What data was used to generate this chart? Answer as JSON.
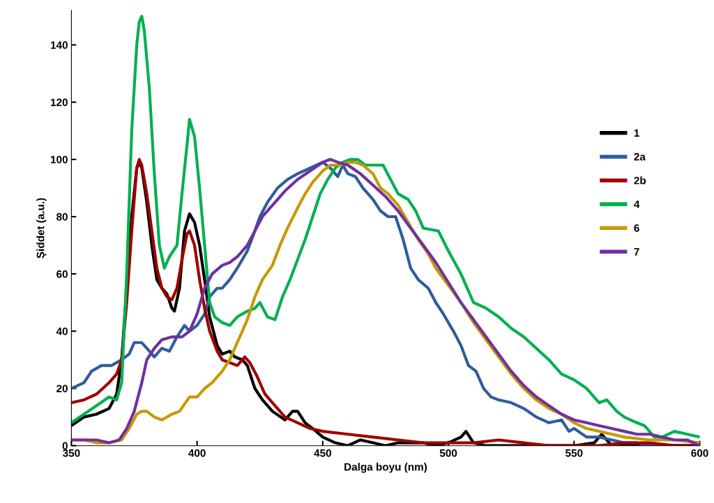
{
  "chart_data": {
    "type": "line",
    "xlabel": "Dalga boyu (nm)",
    "ylabel": "Şiddet (a.u.)",
    "xlim": [
      350,
      600
    ],
    "xticks": [
      350,
      400,
      450,
      500,
      550,
      600
    ],
    "ylim": [
      0,
      152
    ],
    "yticks": [
      0,
      20,
      40,
      60,
      80,
      100,
      120,
      140
    ],
    "grid": false,
    "legend": "right",
    "marker": "none",
    "line_style": "solid",
    "series": [
      {
        "name": "1",
        "color": "#000000",
        "x": [
          350,
          355,
          360,
          365,
          368,
          370,
          372,
          374,
          376,
          377,
          378,
          380,
          382,
          384,
          386,
          388,
          390,
          391,
          393,
          395,
          397,
          399,
          401,
          403,
          405,
          408,
          410,
          413,
          415,
          418,
          420,
          423,
          426,
          430,
          435,
          438,
          440,
          443,
          446,
          450,
          455,
          460,
          465,
          470,
          475,
          480,
          485,
          490,
          495,
          500,
          505,
          507,
          510,
          515,
          520,
          530,
          540,
          550,
          558,
          561,
          563,
          565,
          580,
          600
        ],
        "values": [
          7,
          10,
          11,
          13,
          18,
          30,
          55,
          80,
          97,
          99,
          97,
          85,
          70,
          58,
          55,
          53,
          48,
          47,
          55,
          75,
          81,
          78,
          70,
          58,
          45,
          35,
          32,
          33,
          31,
          30,
          28,
          20,
          16,
          12,
          9,
          12,
          12,
          8,
          6,
          3,
          1,
          0,
          2,
          1,
          0,
          1,
          1,
          1,
          0,
          1,
          3,
          5,
          1,
          0,
          0,
          0,
          0,
          0,
          1,
          4,
          2,
          0,
          0,
          0
        ]
      },
      {
        "name": "2a",
        "color": "#2e5c9e",
        "x": [
          350,
          355,
          358,
          362,
          366,
          370,
          373,
          375,
          378,
          380,
          383,
          386,
          389,
          392,
          395,
          397,
          400,
          403,
          405,
          408,
          410,
          413,
          416,
          420,
          423,
          425,
          428,
          432,
          436,
          440,
          445,
          450,
          453,
          456,
          458,
          460,
          463,
          466,
          470,
          473,
          476,
          479,
          482,
          485,
          488,
          492,
          495,
          498,
          502,
          505,
          508,
          511,
          514,
          517,
          520,
          525,
          530,
          535,
          540,
          545,
          548,
          550,
          555,
          560,
          565,
          570,
          575,
          580,
          590,
          600
        ],
        "values": [
          20,
          22,
          26,
          28,
          28,
          30,
          32,
          36,
          36,
          34,
          31,
          34,
          33,
          38,
          42,
          40,
          42,
          46,
          52,
          55,
          55,
          58,
          62,
          68,
          75,
          80,
          85,
          90,
          93,
          95,
          97,
          99,
          97,
          94,
          98,
          95,
          94,
          90,
          86,
          82,
          80,
          80,
          72,
          62,
          58,
          55,
          50,
          46,
          40,
          35,
          28,
          26,
          20,
          17,
          16,
          15,
          13,
          10,
          8,
          9,
          5,
          6,
          3,
          3,
          2,
          1,
          1,
          0,
          0,
          0
        ]
      },
      {
        "name": "2b",
        "color": "#a00000",
        "x": [
          350,
          355,
          360,
          365,
          368,
          370,
          372,
          374,
          376,
          377,
          378,
          380,
          382,
          384,
          386,
          388,
          390,
          392,
          394,
          396,
          397,
          399,
          401,
          403,
          405,
          408,
          410,
          413,
          416,
          419,
          421,
          424,
          427,
          430,
          435,
          440,
          445,
          450,
          460,
          470,
          480,
          490,
          500,
          510,
          520,
          530,
          540,
          550,
          560,
          570,
          580,
          590,
          600
        ],
        "values": [
          15,
          16,
          18,
          22,
          25,
          30,
          50,
          75,
          97,
          100,
          98,
          88,
          75,
          62,
          55,
          52,
          51,
          55,
          65,
          74,
          75,
          70,
          58,
          48,
          40,
          33,
          30,
          29,
          28,
          31,
          29,
          24,
          18,
          15,
          10,
          8,
          6,
          5,
          4,
          3,
          2,
          1,
          1,
          1,
          2,
          1,
          0,
          0,
          0,
          1,
          1,
          0,
          0
        ]
      },
      {
        "name": "4",
        "color": "#00b050",
        "x": [
          350,
          355,
          360,
          365,
          368,
          370,
          372,
          374,
          376,
          377,
          378,
          379,
          381,
          383,
          385,
          387,
          389,
          392,
          394,
          396,
          397,
          399,
          401,
          403,
          405,
          407,
          410,
          413,
          416,
          420,
          423,
          425,
          428,
          431,
          434,
          437,
          440,
          443,
          446,
          449,
          452,
          455,
          458,
          461,
          464,
          467,
          470,
          474,
          477,
          480,
          484,
          487,
          490,
          496,
          500,
          505,
          510,
          515,
          520,
          525,
          530,
          535,
          540,
          545,
          550,
          555,
          560,
          563,
          567,
          570,
          575,
          578,
          582,
          585,
          590,
          595,
          600
        ],
        "values": [
          8,
          11,
          14,
          17,
          16,
          22,
          60,
          110,
          140,
          148,
          150,
          145,
          125,
          95,
          70,
          62,
          66,
          70,
          88,
          105,
          114,
          108,
          90,
          70,
          50,
          45,
          43,
          42,
          45,
          47,
          48,
          50,
          45,
          44,
          52,
          58,
          65,
          72,
          80,
          88,
          93,
          97,
          99,
          100,
          100,
          98,
          98,
          98,
          93,
          88,
          86,
          82,
          76,
          75,
          68,
          60,
          50,
          48,
          45,
          41,
          38,
          34,
          30,
          25,
          23,
          20,
          15,
          16,
          12,
          10,
          8,
          7,
          3,
          3,
          5,
          4,
          3
        ]
      },
      {
        "name": "6",
        "color": "#c89800",
        "x": [
          350,
          355,
          360,
          365,
          370,
          373,
          376,
          378,
          380,
          383,
          386,
          390,
          393,
          397,
          400,
          403,
          406,
          410,
          413,
          416,
          420,
          423,
          426,
          430,
          433,
          436,
          440,
          443,
          446,
          450,
          453,
          457,
          460,
          463,
          466,
          470,
          473,
          476,
          480,
          484,
          488,
          492,
          495,
          500,
          505,
          510,
          515,
          520,
          525,
          530,
          535,
          540,
          545,
          550,
          555,
          560,
          565,
          570,
          580,
          590,
          600
        ],
        "values": [
          2,
          2,
          1,
          1,
          2,
          6,
          11,
          12,
          12,
          10,
          9,
          11,
          12,
          17,
          17,
          20,
          22,
          26,
          30,
          36,
          44,
          52,
          58,
          63,
          70,
          76,
          83,
          88,
          92,
          96,
          98,
          98,
          99,
          99,
          98,
          95,
          90,
          88,
          84,
          78,
          72,
          67,
          62,
          56,
          50,
          43,
          37,
          31,
          25,
          20,
          16,
          13,
          11,
          8,
          6,
          5,
          4,
          3,
          2,
          2,
          1
        ]
      },
      {
        "name": "7",
        "color": "#7030a0",
        "x": [
          350,
          355,
          360,
          365,
          369,
          372,
          375,
          378,
          380,
          383,
          386,
          390,
          394,
          397,
          400,
          403,
          406,
          410,
          413,
          416,
          420,
          423,
          426,
          430,
          435,
          440,
          445,
          450,
          453,
          456,
          460,
          465,
          470,
          475,
          480,
          485,
          490,
          495,
          500,
          505,
          510,
          515,
          520,
          525,
          530,
          535,
          540,
          545,
          550,
          555,
          560,
          565,
          570,
          575,
          580,
          585,
          590,
          595,
          600
        ],
        "values": [
          2,
          2,
          2,
          1,
          2,
          6,
          12,
          22,
          30,
          34,
          37,
          38,
          38,
          40,
          46,
          55,
          60,
          63,
          64,
          66,
          70,
          75,
          80,
          84,
          89,
          93,
          96,
          99,
          100,
          99,
          98,
          95,
          91,
          87,
          82,
          76,
          70,
          64,
          57,
          50,
          44,
          38,
          32,
          26,
          21,
          17,
          14,
          11,
          9,
          8,
          7,
          6,
          5,
          4,
          4,
          3,
          2,
          2,
          0
        ]
      }
    ]
  }
}
